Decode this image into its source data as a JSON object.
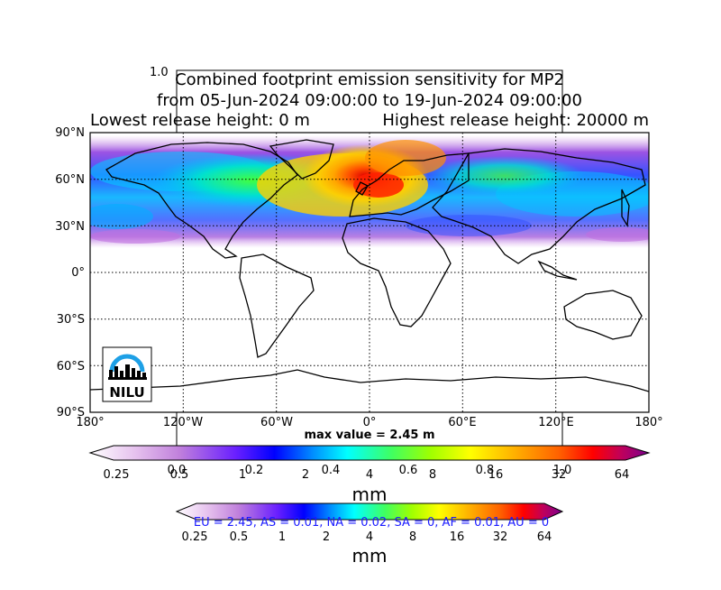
{
  "title": {
    "line1": "Combined footprint emission sensitivity for MP2",
    "line2": "from 05-Jun-2024 09:00:00 to 19-Jun-2024 09:00:00",
    "line3_left": "Lowest release height: 0 m",
    "line3_right": "Highest release height: 20000 m"
  },
  "stray_axis": {
    "top_label": "1.0",
    "ticks": [
      "0.0",
      "0.2",
      "0.4",
      "0.6",
      "0.8",
      "1.0"
    ]
  },
  "map": {
    "lat_labels": [
      "90°N",
      "60°N",
      "30°N",
      "0°",
      "30°S",
      "60°S",
      "90°S"
    ],
    "lon_labels": [
      "180°",
      "120°W",
      "60°W",
      "0°",
      "60°E",
      "120°E",
      "180°"
    ],
    "max_value_text": "max value = 2.45 m",
    "logo_text": "NILU",
    "plume_colors": [
      "#ff0000",
      "#ff8c00",
      "#ffd700",
      "#7cfc00",
      "#00ffff",
      "#1e90ff",
      "#0000ff",
      "#8a2be2",
      "#da70d6"
    ]
  },
  "colorbar1": {
    "ticks": [
      "0.25",
      "0.5",
      "1",
      "2",
      "4",
      "8",
      "16",
      "32",
      "64"
    ],
    "unit": "mm"
  },
  "colorbar2": {
    "ticks": [
      "0.25",
      "0.5",
      "1",
      "2",
      "4",
      "8",
      "16",
      "32",
      "64"
    ],
    "unit": "mm",
    "regions_text": "EU = 2.45,  AS = 0.01,  NA = 0.02,  SA = 0,  AF = 0.01,  AU = 0"
  },
  "colormap": [
    "#ffffff",
    "#e0b0e8",
    "#b060d0",
    "#6a00ff",
    "#0000ff",
    "#0080ff",
    "#00e0ff",
    "#40ff80",
    "#a0ff00",
    "#ffff00",
    "#ffc000",
    "#ff8000",
    "#ff2000",
    "#d0006a",
    "#8a0080"
  ]
}
